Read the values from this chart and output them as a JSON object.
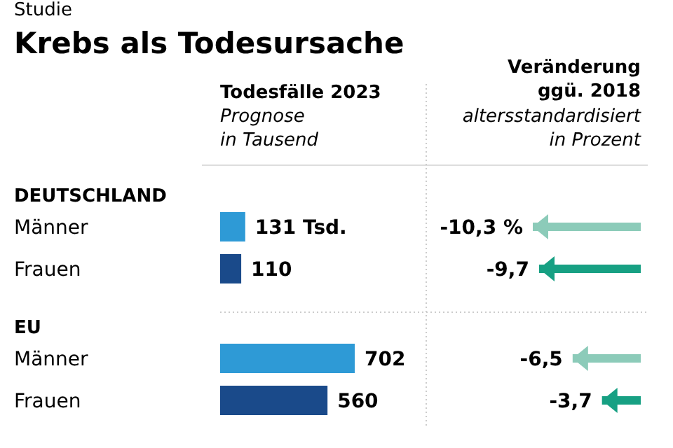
{
  "chart_data": [
    {
      "type": "bar",
      "orientation": "horizontal",
      "title": "Krebs als Todesursache",
      "xlabel": "Todesfälle 2023",
      "subtitle": "Prognose\nin Tausend",
      "annotations": [
        "Studie",
        "DEUTSCHLAND",
        "EU"
      ],
      "categories": [
        "Männer",
        "Frauen",
        "Männer",
        "Frauen"
      ],
      "values": [
        131,
        110,
        702,
        560
      ],
      "colors": [
        "#2e9ad6",
        "#1a4a8a",
        "#2e9ad6",
        "#1a4a8a"
      ],
      "value_labels": [
        "131 Tsd.",
        "110",
        "702",
        "560"
      ]
    },
    {
      "type": "bar",
      "orientation": "horizontal",
      "title": "Veränderung\nggü. 2018",
      "subtitle": "altersstandardisiert\nin Prozent",
      "categories": [
        null,
        null,
        null,
        null
      ],
      "values": [
        -10.3,
        -9.7,
        -6.5,
        -3.7
      ],
      "colors": [
        "#8ccbb9",
        "#17a083",
        "#8ccbb9",
        "#17a083"
      ],
      "value_labels": [
        "-10,3 %",
        "-9,7",
        "-6,5",
        "-3,7"
      ]
    }
  ]
}
